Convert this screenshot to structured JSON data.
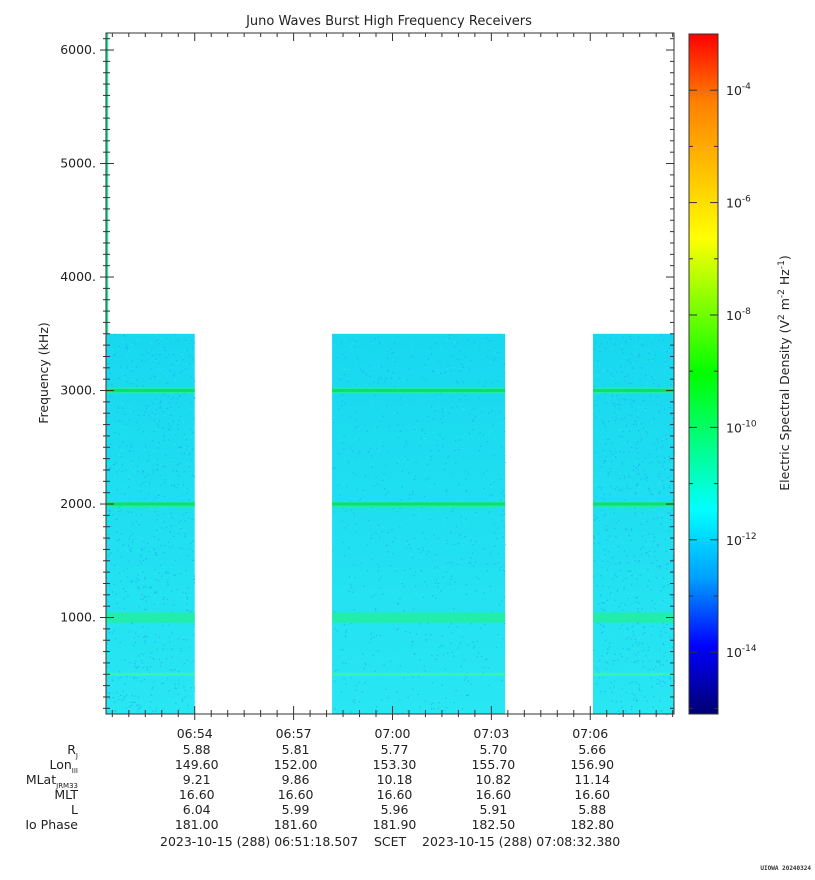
{
  "chart_data": {
    "type": "heatmap",
    "title": "Juno Waves Burst High Frequency Receivers",
    "ylabel": "Frequency (kHz)",
    "ylim": [
      150,
      6150
    ],
    "yticks": [
      1000,
      2000,
      3000,
      4000,
      5000,
      6000
    ],
    "ytick_labels": [
      "1000.",
      "2000.",
      "3000.",
      "4000.",
      "5000.",
      "6000."
    ],
    "xlim_minutes": [
      411.308,
      428.541
    ],
    "xticks": [
      "06:54",
      "06:57",
      "07:00",
      "07:03",
      "07:06"
    ],
    "data_blocks": [
      {
        "start": "06:51:18",
        "end": "06:54:00",
        "fmax_khz": 3500
      },
      {
        "start": "06:58:10",
        "end": "07:03:25",
        "fmax_khz": 3500
      },
      {
        "start": "07:06:05",
        "end": "07:08:32",
        "fmax_khz": 3500
      }
    ],
    "emission_lines_khz": [
      500,
      1000,
      2000,
      3000
    ],
    "early_line_to_6000": true,
    "colorbar": {
      "label": "Electric Spectral Density (V2 m-2 Hz-1)",
      "label_base": "Electric Spectral Density (V",
      "exponent_ticks": [
        "-4",
        "-6",
        "-8",
        "-10",
        "-12",
        "-14"
      ],
      "scale": "log",
      "colors": [
        "#000070",
        "#0000ff",
        "#00a0ff",
        "#00ffff",
        "#00ff80",
        "#00ff00",
        "#80ff00",
        "#ffff00",
        "#ffc000",
        "#ff8000",
        "#ff0000"
      ]
    },
    "ephemeris": {
      "labels": [
        "R",
        "Lon",
        "MLat",
        "MLT",
        "L",
        "Io Phase"
      ],
      "label_subscripts": [
        "J",
        "III",
        "JRM33",
        "",
        "",
        ""
      ],
      "rows": [
        [
          "5.88",
          "5.81",
          "5.77",
          "5.70",
          "5.66"
        ],
        [
          "149.60",
          "152.00",
          "153.30",
          "155.70",
          "156.90"
        ],
        [
          "9.21",
          "9.86",
          "10.18",
          "10.82",
          "11.14"
        ],
        [
          "16.60",
          "16.60",
          "16.60",
          "16.60",
          "16.60"
        ],
        [
          "6.04",
          "5.99",
          "5.96",
          "5.91",
          "5.88"
        ],
        [
          "181.00",
          "181.60",
          "181.90",
          "182.50",
          "182.80"
        ]
      ]
    }
  },
  "footer": {
    "start": "2023-10-15 (288) 06:51:18.507",
    "scet": "SCET",
    "end": "2023-10-15 (288) 07:08:32.380"
  },
  "stamp": "UIOWA 20240324"
}
